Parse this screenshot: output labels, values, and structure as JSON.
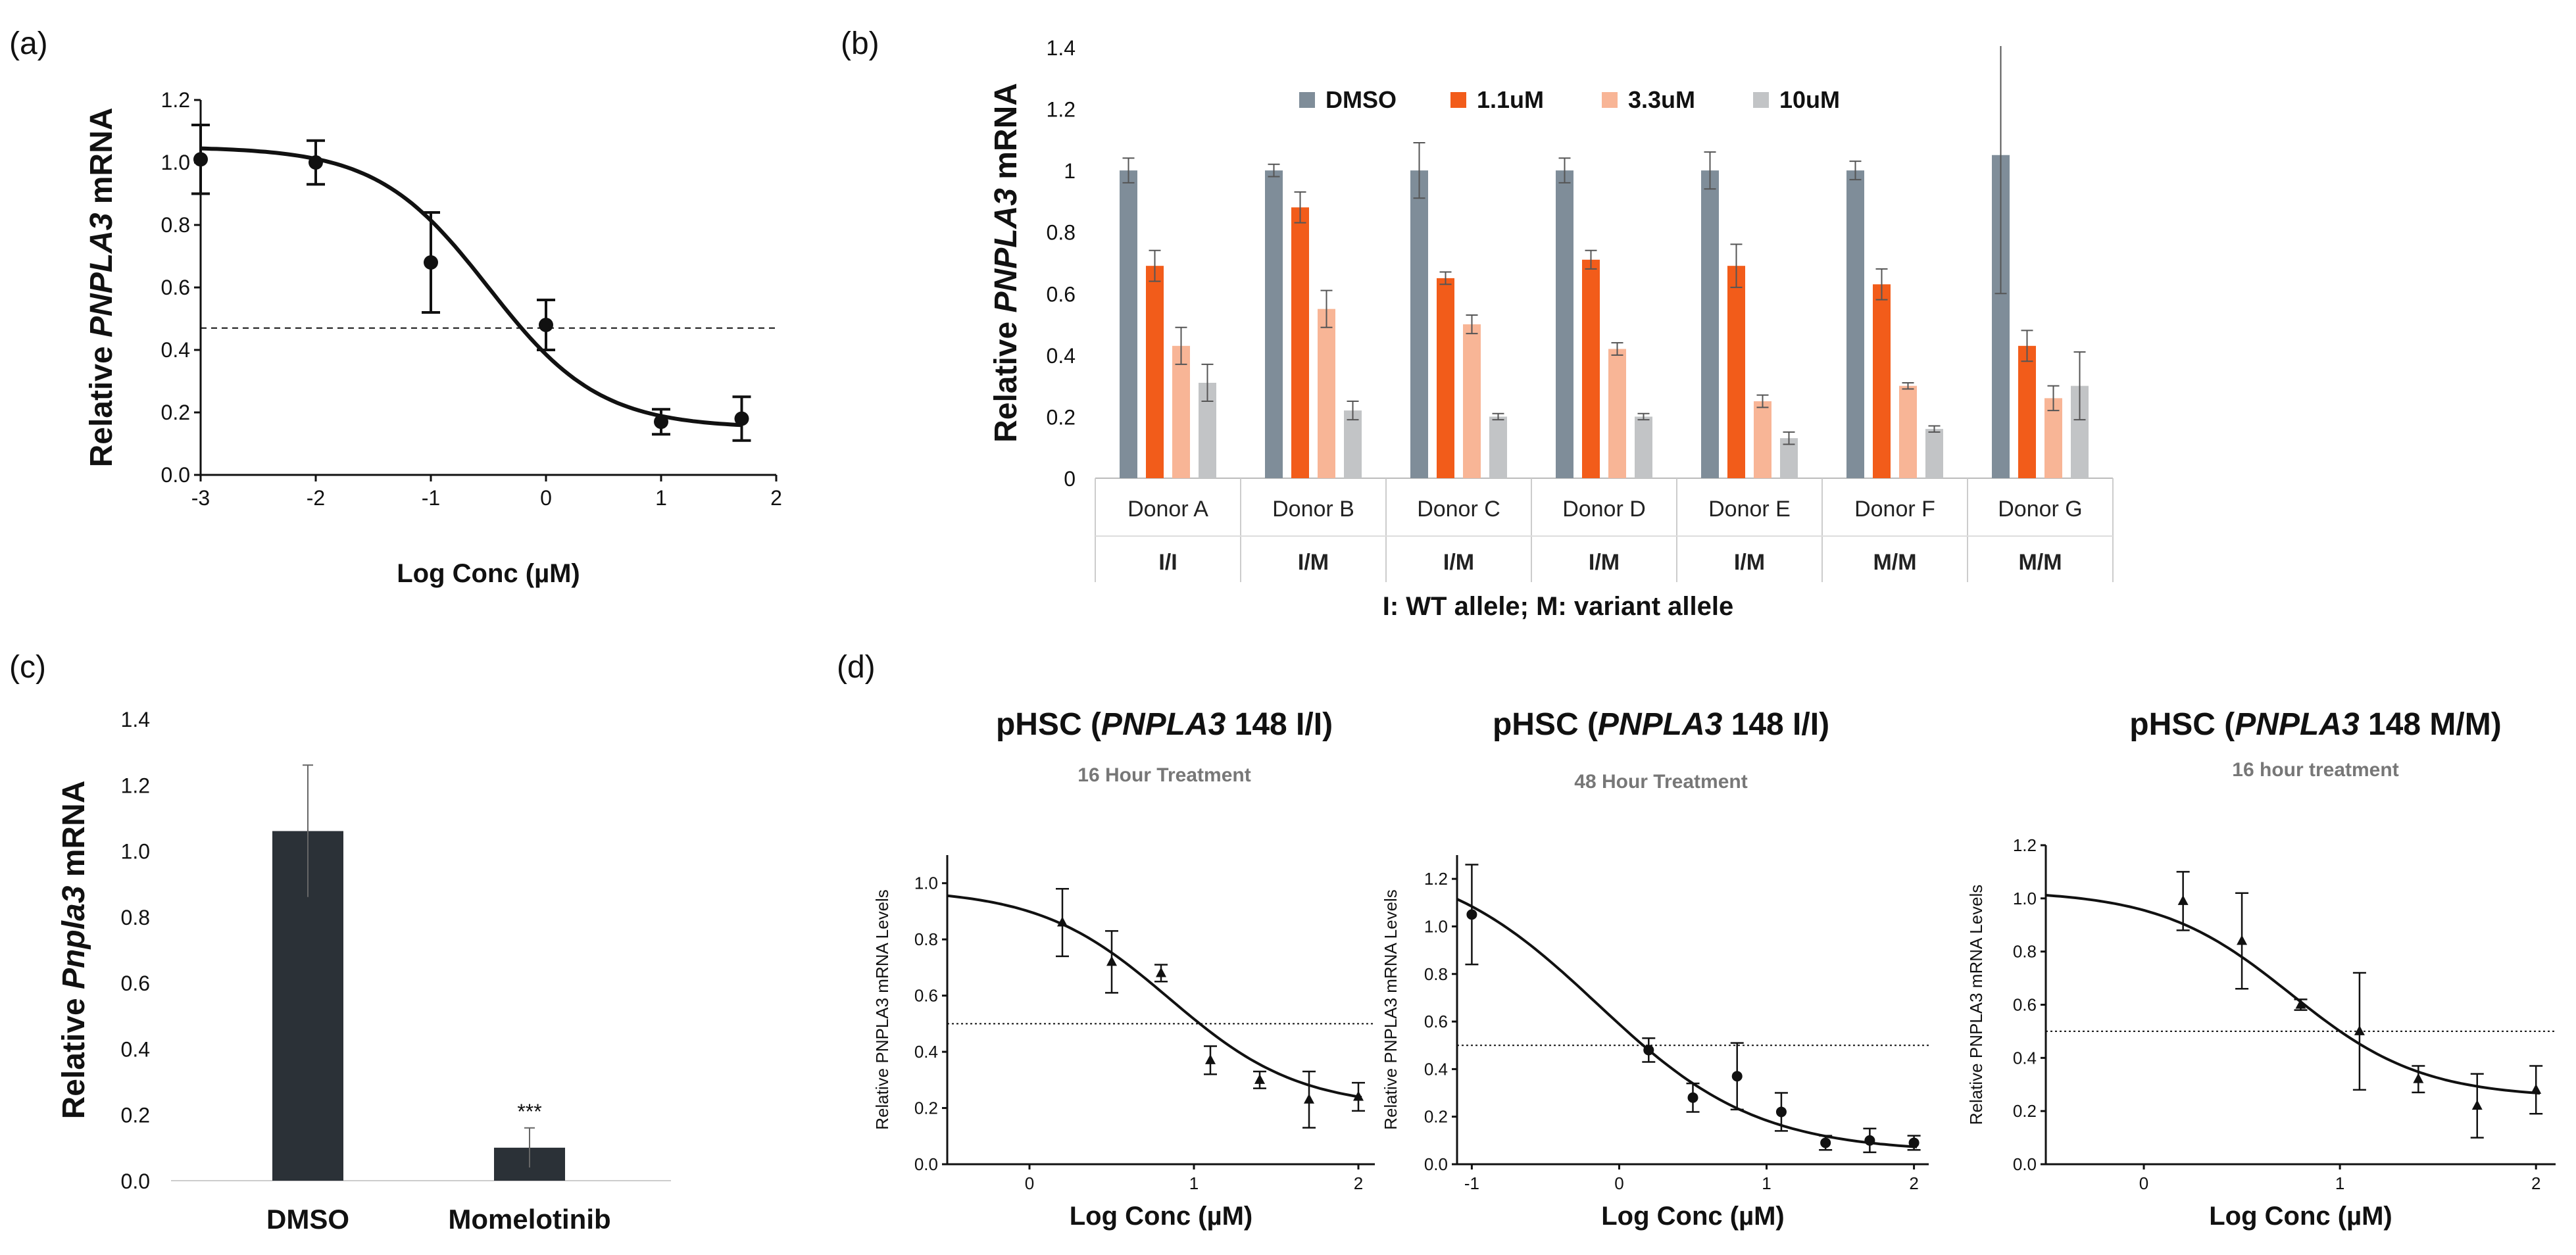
{
  "panels": {
    "a": "(a)",
    "b": "(b)",
    "c": "(c)",
    "d": "(d)"
  },
  "chart_data": [
    {
      "id": "a",
      "type": "scatter",
      "fit": "sigmoid",
      "ylabel_pre": "Relative ",
      "ylabel_gene": "PNPLA3",
      "ylabel_post": " mRNA",
      "xlabel": "Log Conc (µM)",
      "xlim": [
        -3,
        2
      ],
      "ylim": [
        0,
        1.2
      ],
      "xticks": [
        "-3",
        "-2",
        "-1",
        "0",
        "1",
        "2"
      ],
      "yticks": [
        "0.0",
        "0.2",
        "0.4",
        "0.6",
        "0.8",
        "1.0",
        "1.2"
      ],
      "x": [
        -3,
        -2,
        -1,
        0,
        1,
        1.7
      ],
      "y": [
        1.01,
        1.0,
        0.68,
        0.48,
        0.17,
        0.18
      ],
      "err": [
        0.11,
        0.07,
        0.16,
        0.08,
        0.04,
        0.07
      ],
      "reference_line": 0.47,
      "fit_params": {
        "top": 1.05,
        "bottom": 0.15,
        "logIC50": -0.5,
        "hill": 0.9
      }
    },
    {
      "id": "b",
      "type": "bar",
      "ylabel_pre": "Relative ",
      "ylabel_gene": "PNPLA3",
      "ylabel_post": " mRNA",
      "ylim": [
        0,
        1.4
      ],
      "yticks": [
        "0",
        "0.2",
        "0.4",
        "0.6",
        "0.8",
        "1",
        "1.2",
        "1.4"
      ],
      "categories": [
        "Donor A",
        "Donor B",
        "Donor C",
        "Donor D",
        "Donor E",
        "Donor F",
        "Donor G"
      ],
      "genotypes": [
        "I/I",
        "I/M",
        "I/M",
        "I/M",
        "I/M",
        "M/M",
        "M/M"
      ],
      "xlabel": "I: WT allele; M: variant allele",
      "series": [
        {
          "name": "DMSO",
          "color": "#7f8d99",
          "values": [
            1.0,
            1.0,
            1.0,
            1.0,
            1.0,
            1.0,
            1.05
          ],
          "err": [
            0.04,
            0.02,
            0.09,
            0.04,
            0.06,
            0.03,
            0.45
          ]
        },
        {
          "name": "1.1uM",
          "color": "#f25c1a",
          "values": [
            0.69,
            0.88,
            0.65,
            0.71,
            0.69,
            0.63,
            0.43
          ],
          "err": [
            0.05,
            0.05,
            0.02,
            0.03,
            0.07,
            0.05,
            0.05
          ]
        },
        {
          "name": "3.3uM",
          "color": "#f8b596",
          "values": [
            0.43,
            0.55,
            0.5,
            0.42,
            0.25,
            0.3,
            0.26
          ],
          "err": [
            0.06,
            0.06,
            0.03,
            0.02,
            0.02,
            0.01,
            0.04
          ]
        },
        {
          "name": "10uM",
          "color": "#c2c4c6",
          "values": [
            0.31,
            0.22,
            0.2,
            0.2,
            0.13,
            0.16,
            0.3
          ],
          "err": [
            0.06,
            0.03,
            0.01,
            0.01,
            0.02,
            0.01,
            0.11
          ]
        }
      ]
    },
    {
      "id": "c",
      "type": "bar",
      "ylabel_pre": "Relative ",
      "ylabel_gene": "Pnpla3",
      "ylabel_post": " mRNA",
      "ylim": [
        0,
        1.4
      ],
      "yticks": [
        "0.0",
        "0.2",
        "0.4",
        "0.6",
        "0.8",
        "1.0",
        "1.2",
        "1.4"
      ],
      "categories": [
        "DMSO",
        "Momelotinib"
      ],
      "values": [
        1.06,
        0.1
      ],
      "err": [
        0.2,
        0.06
      ],
      "annotation": "***",
      "color": "#2b3137"
    },
    {
      "id": "d1",
      "type": "scatter",
      "fit": "sigmoid",
      "title_pre": "pHSC (",
      "title_gene": "PNPLA3",
      "title_post": " 148 I/I)",
      "subtitle": "16 Hour Treatment",
      "ylabel": "Relative PNPLA3 mRNA Levels",
      "xlabel": "Log Conc (µM)",
      "xlim": [
        -0.5,
        2.1
      ],
      "ylim": [
        0,
        1.1
      ],
      "xticks": [
        "0",
        "1",
        "2"
      ],
      "xtick_values": [
        0,
        1,
        2
      ],
      "yticks": [
        "0.0",
        "0.2",
        "0.4",
        "0.6",
        "0.8",
        "1.0"
      ],
      "ytick_values": [
        0,
        0.2,
        0.4,
        0.6,
        0.8,
        1.0
      ],
      "marker": "triangle",
      "x": [
        0.2,
        0.5,
        0.8,
        1.1,
        1.4,
        1.7,
        2.0
      ],
      "y": [
        0.86,
        0.72,
        0.68,
        0.37,
        0.3,
        0.23,
        0.24
      ],
      "err": [
        0.12,
        0.11,
        0.03,
        0.05,
        0.03,
        0.1,
        0.05
      ],
      "reference_line": 0.5,
      "fit_params": {
        "top": 0.98,
        "bottom": 0.2,
        "logIC50": 0.85,
        "hill": 1.1
      }
    },
    {
      "id": "d2",
      "type": "scatter",
      "fit": "sigmoid",
      "title_pre": "pHSC (",
      "title_gene": "PNPLA3",
      "title_post": " 148 I/I)",
      "subtitle": "48 Hour Treatment",
      "ylabel": "Relative PNPLA3 mRNA Levels",
      "xlabel": "Log Conc (µM)",
      "xlim": [
        -1.1,
        2.1
      ],
      "ylim": [
        0,
        1.3
      ],
      "xticks": [
        "-1",
        "0",
        "1",
        "2"
      ],
      "xtick_values": [
        -1,
        0,
        1,
        2
      ],
      "yticks": [
        "0.0",
        "0.2",
        "0.4",
        "0.6",
        "0.8",
        "1.0",
        "1.2"
      ],
      "ytick_values": [
        0,
        0.2,
        0.4,
        0.6,
        0.8,
        1.0,
        1.2
      ],
      "marker": "circle",
      "x": [
        -1,
        0.2,
        0.5,
        0.8,
        1.1,
        1.4,
        1.7,
        2.0
      ],
      "y": [
        1.05,
        0.48,
        0.28,
        0.37,
        0.22,
        0.09,
        0.1,
        0.09
      ],
      "err": [
        0.21,
        0.05,
        0.06,
        0.14,
        0.08,
        0.03,
        0.05,
        0.03
      ],
      "reference_line": 0.5,
      "fit_params": {
        "top": 1.3,
        "bottom": 0.05,
        "logIC50": -0.15,
        "hill": 0.8
      }
    },
    {
      "id": "d3",
      "type": "scatter",
      "fit": "sigmoid",
      "title_pre": "pHSC (",
      "title_gene": "PNPLA3",
      "title_post": " 148 M/M)",
      "subtitle": "16 hour treatment",
      "ylabel": "Relative PNPLA3 mRNA Levels",
      "xlabel": "Log Conc (µM)",
      "xlim": [
        -0.5,
        2.1
      ],
      "ylim": [
        0,
        1.2
      ],
      "xticks": [
        "0",
        "1",
        "2"
      ],
      "xtick_values": [
        0,
        1,
        2
      ],
      "yticks": [
        "0.0",
        "0.2",
        "0.4",
        "0.6",
        "0.8",
        "1.0",
        "1.2"
      ],
      "ytick_values": [
        0,
        0.2,
        0.4,
        0.6,
        0.8,
        1.0,
        1.2
      ],
      "marker": "triangle",
      "x": [
        0.2,
        0.5,
        0.8,
        1.1,
        1.4,
        1.7,
        2.0
      ],
      "y": [
        0.99,
        0.84,
        0.6,
        0.5,
        0.32,
        0.22,
        0.28
      ],
      "err": [
        0.11,
        0.18,
        0.02,
        0.22,
        0.05,
        0.12,
        0.09
      ],
      "reference_line": 0.5,
      "fit_params": {
        "top": 1.03,
        "bottom": 0.25,
        "logIC50": 0.75,
        "hill": 1.3
      }
    }
  ]
}
